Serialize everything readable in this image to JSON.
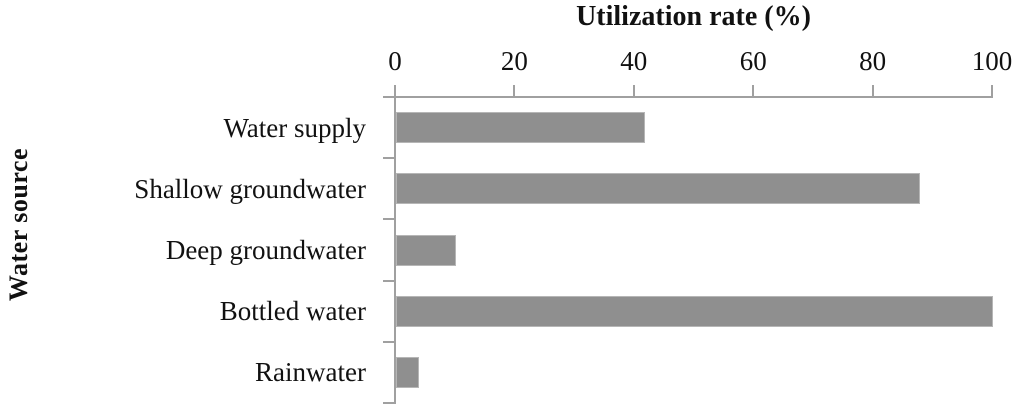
{
  "chart_data": {
    "type": "bar",
    "orientation": "horizontal",
    "title": "Utilization rate (%)",
    "xlabel": "Utilization rate (%)",
    "ylabel": "Water source",
    "categories": [
      "Water supply",
      "Shallow groundwater",
      "Deep groundwater",
      "Bottled water",
      "Rainwater"
    ],
    "values": [
      41.7,
      87.8,
      10,
      100,
      3.9
    ],
    "xlim": [
      0,
      100
    ],
    "xticks": [
      0,
      20,
      40,
      60,
      80,
      100
    ],
    "grid": false,
    "legend": "none",
    "tick_side": "top",
    "colors": {
      "bar": "#8f8f8f",
      "axis": "#a0a0a0",
      "text": "#111111",
      "background": "#ffffff"
    }
  }
}
